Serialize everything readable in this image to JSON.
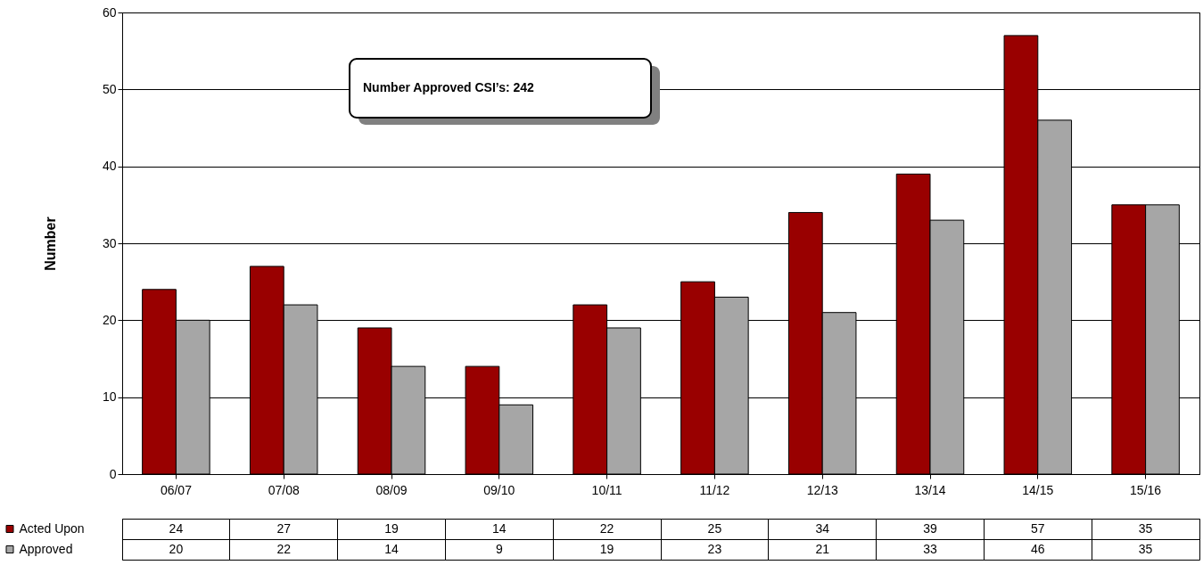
{
  "chart_data": {
    "type": "bar",
    "ylabel": "Number",
    "categories": [
      "06/07",
      "07/08",
      "08/09",
      "09/10",
      "10/11",
      "11/12",
      "12/13",
      "13/14",
      "14/15",
      "15/16"
    ],
    "series": [
      {
        "name": "Acted Upon",
        "color": "#990000",
        "values": [
          24,
          27,
          19,
          14,
          22,
          25,
          34,
          39,
          57,
          35
        ]
      },
      {
        "name": "Approved",
        "color": "#a6a6a6",
        "values": [
          20,
          22,
          14,
          9,
          19,
          23,
          21,
          33,
          46,
          35
        ]
      }
    ],
    "ylim": [
      0,
      60
    ],
    "yticks": [
      0,
      10,
      20,
      30,
      40,
      50,
      60
    ],
    "grid": "y",
    "legend": "bottom left",
    "data_labels": true,
    "annotations": [
      "Number Approved CSI’s: 242"
    ]
  }
}
